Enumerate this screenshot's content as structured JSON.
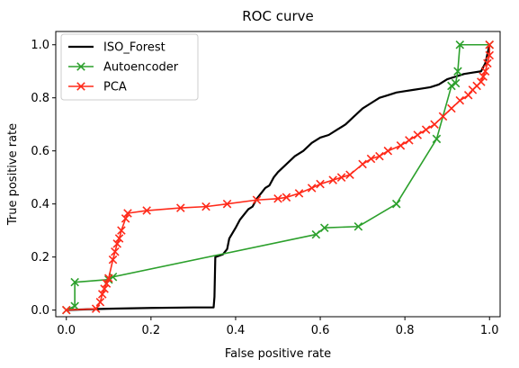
{
  "chart_data": {
    "type": "line",
    "title": "ROC curve",
    "xlabel": "False positive rate",
    "ylabel": "True positive rate",
    "xlim": [
      -0.025,
      1.025
    ],
    "ylim": [
      -0.025,
      1.05
    ],
    "xticks": [
      0.0,
      0.2,
      0.4,
      0.6,
      0.8,
      1.0
    ],
    "xtick_labels": [
      "0.0",
      "0.2",
      "0.4",
      "0.6",
      "0.8",
      "1.0"
    ],
    "yticks": [
      0.0,
      0.2,
      0.4,
      0.6,
      0.8,
      1.0
    ],
    "ytick_labels": [
      "0.0",
      "0.2",
      "0.4",
      "0.6",
      "0.8",
      "1.0"
    ],
    "grid": false,
    "legend_position": "top-left",
    "series": [
      {
        "name": "ISO_Forest",
        "color": "#000000",
        "marker": "none",
        "points": [
          [
            0.0,
            0.0
          ],
          [
            0.05,
            0.003
          ],
          [
            0.1,
            0.005
          ],
          [
            0.2,
            0.008
          ],
          [
            0.3,
            0.01
          ],
          [
            0.348,
            0.01
          ],
          [
            0.35,
            0.05
          ],
          [
            0.352,
            0.2
          ],
          [
            0.37,
            0.21
          ],
          [
            0.38,
            0.23
          ],
          [
            0.385,
            0.27
          ],
          [
            0.4,
            0.31
          ],
          [
            0.41,
            0.34
          ],
          [
            0.42,
            0.36
          ],
          [
            0.43,
            0.38
          ],
          [
            0.44,
            0.39
          ],
          [
            0.45,
            0.42
          ],
          [
            0.46,
            0.44
          ],
          [
            0.47,
            0.46
          ],
          [
            0.48,
            0.47
          ],
          [
            0.49,
            0.5
          ],
          [
            0.5,
            0.52
          ],
          [
            0.52,
            0.55
          ],
          [
            0.54,
            0.58
          ],
          [
            0.56,
            0.6
          ],
          [
            0.58,
            0.63
          ],
          [
            0.6,
            0.65
          ],
          [
            0.62,
            0.66
          ],
          [
            0.64,
            0.68
          ],
          [
            0.66,
            0.7
          ],
          [
            0.68,
            0.73
          ],
          [
            0.7,
            0.76
          ],
          [
            0.72,
            0.78
          ],
          [
            0.74,
            0.8
          ],
          [
            0.76,
            0.81
          ],
          [
            0.78,
            0.82
          ],
          [
            0.8,
            0.825
          ],
          [
            0.82,
            0.83
          ],
          [
            0.84,
            0.835
          ],
          [
            0.86,
            0.84
          ],
          [
            0.88,
            0.85
          ],
          [
            0.9,
            0.87
          ],
          [
            0.92,
            0.88
          ],
          [
            0.94,
            0.89
          ],
          [
            0.96,
            0.895
          ],
          [
            0.98,
            0.9
          ],
          [
            0.99,
            0.93
          ],
          [
            1.0,
            1.0
          ]
        ]
      },
      {
        "name": "Autoencoder",
        "color": "#2ca02c",
        "marker": "x",
        "points": [
          [
            0.0,
            0.0
          ],
          [
            0.02,
            0.015
          ],
          [
            0.02,
            0.105
          ],
          [
            0.1,
            0.115
          ],
          [
            0.11,
            0.125
          ],
          [
            0.59,
            0.285
          ],
          [
            0.61,
            0.31
          ],
          [
            0.69,
            0.315
          ],
          [
            0.78,
            0.4
          ],
          [
            0.875,
            0.645
          ],
          [
            0.91,
            0.845
          ],
          [
            0.92,
            0.855
          ],
          [
            0.925,
            0.9
          ],
          [
            0.93,
            1.0
          ],
          [
            1.0,
            1.0
          ]
        ]
      },
      {
        "name": "PCA",
        "color": "#ff2a1a",
        "marker": "x",
        "points": [
          [
            0.0,
            0.0
          ],
          [
            0.07,
            0.005
          ],
          [
            0.08,
            0.03
          ],
          [
            0.085,
            0.06
          ],
          [
            0.09,
            0.08
          ],
          [
            0.095,
            0.1
          ],
          [
            0.1,
            0.12
          ],
          [
            0.11,
            0.19
          ],
          [
            0.115,
            0.22
          ],
          [
            0.12,
            0.25
          ],
          [
            0.125,
            0.27
          ],
          [
            0.13,
            0.3
          ],
          [
            0.14,
            0.345
          ],
          [
            0.145,
            0.365
          ],
          [
            0.19,
            0.375
          ],
          [
            0.27,
            0.385
          ],
          [
            0.33,
            0.39
          ],
          [
            0.38,
            0.4
          ],
          [
            0.45,
            0.415
          ],
          [
            0.5,
            0.42
          ],
          [
            0.52,
            0.425
          ],
          [
            0.55,
            0.44
          ],
          [
            0.58,
            0.46
          ],
          [
            0.6,
            0.475
          ],
          [
            0.63,
            0.49
          ],
          [
            0.65,
            0.5
          ],
          [
            0.67,
            0.51
          ],
          [
            0.7,
            0.55
          ],
          [
            0.72,
            0.57
          ],
          [
            0.74,
            0.58
          ],
          [
            0.76,
            0.6
          ],
          [
            0.79,
            0.62
          ],
          [
            0.81,
            0.64
          ],
          [
            0.83,
            0.66
          ],
          [
            0.85,
            0.68
          ],
          [
            0.87,
            0.7
          ],
          [
            0.89,
            0.73
          ],
          [
            0.91,
            0.76
          ],
          [
            0.93,
            0.79
          ],
          [
            0.95,
            0.81
          ],
          [
            0.96,
            0.83
          ],
          [
            0.97,
            0.845
          ],
          [
            0.98,
            0.86
          ],
          [
            0.985,
            0.88
          ],
          [
            0.99,
            0.9
          ],
          [
            0.995,
            0.93
          ],
          [
            1.0,
            0.96
          ],
          [
            1.0,
            1.0
          ]
        ]
      }
    ]
  }
}
